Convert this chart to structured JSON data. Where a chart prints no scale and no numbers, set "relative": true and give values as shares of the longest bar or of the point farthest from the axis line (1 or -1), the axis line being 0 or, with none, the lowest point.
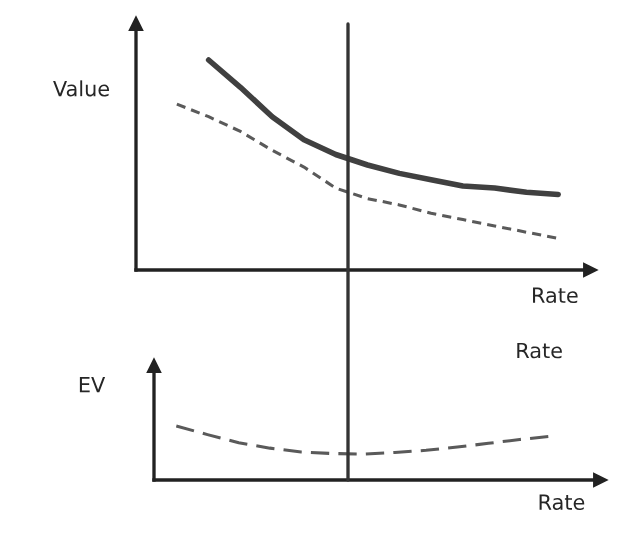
{
  "chart_data": [
    {
      "type": "line",
      "relative": true,
      "ylabel": "Value",
      "xlabel": "Rate",
      "categories": [
        null,
        null,
        null,
        null,
        null,
        null,
        null,
        null,
        null,
        null,
        null,
        null,
        null
      ],
      "series": [
        {
          "color": "#404040",
          "line_style": "solid",
          "values": [
            null,
            1,
            0.87,
            0.73,
            0.62,
            0.55,
            0.5,
            0.46,
            0.43,
            0.4,
            0.39,
            0.37,
            0.36
          ]
        },
        {
          "color": "#5a5a5a",
          "line_style": "dotted",
          "values": [
            0.79,
            0.73,
            0.66,
            0.57,
            0.49,
            0.39,
            0.34,
            0.31,
            0.27,
            0.24,
            0.21,
            0.18,
            0.15
          ]
        }
      ]
    },
    {
      "type": "line",
      "relative": true,
      "ylabel": "EV",
      "xlabel": "Rate",
      "annotations": [
        "Rate"
      ],
      "categories": [
        null,
        null,
        null,
        null,
        null,
        null,
        null,
        null,
        null,
        null,
        null,
        null,
        null
      ],
      "series": [
        {
          "color": "#5a5a5a",
          "line_style": "dashed",
          "values": [
            1,
            0.84,
            0.69,
            0.59,
            0.52,
            0.49,
            0.48,
            0.51,
            0.55,
            0.61,
            0.68,
            0.75,
            0.81
          ]
        }
      ]
    }
  ]
}
